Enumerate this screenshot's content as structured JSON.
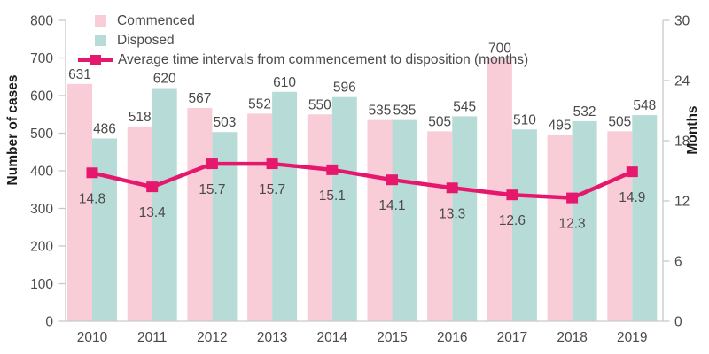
{
  "chart_data": {
    "type": "combo-bar-line",
    "title": "",
    "categories": [
      "2010",
      "2011",
      "2012",
      "2013",
      "2014",
      "2015",
      "2016",
      "2017",
      "2018",
      "2019"
    ],
    "series": [
      {
        "name": "Commenced",
        "type": "bar",
        "axis": "left",
        "color": "#f9cdd8",
        "values": [
          631,
          518,
          567,
          552,
          550,
          535,
          505,
          700,
          495,
          505
        ]
      },
      {
        "name": "Disposed",
        "type": "bar",
        "axis": "left",
        "color": "#b7dcd8",
        "values": [
          486,
          620,
          503,
          610,
          596,
          535,
          545,
          510,
          532,
          548
        ]
      },
      {
        "name": "Average time intervals from commencement to disposition (months)",
        "type": "line",
        "axis": "right",
        "color": "#e6186e",
        "marker": "square",
        "values": [
          14.8,
          13.4,
          15.7,
          15.7,
          15.1,
          14.1,
          13.3,
          12.6,
          12.3,
          14.9
        ]
      }
    ],
    "left_axis": {
      "label": "Number of cases",
      "min": 0,
      "max": 800,
      "ticks": [
        0,
        100,
        200,
        300,
        400,
        500,
        600,
        700,
        800
      ]
    },
    "right_axis": {
      "label": "Months",
      "min": 0,
      "max": 30,
      "ticks": [
        0,
        6,
        12,
        18,
        24,
        30
      ]
    },
    "grid": false,
    "legend_position": "top-left",
    "background": "#ffffff"
  },
  "colors": {
    "commenced_bar": "#f9cdd8",
    "disposed_bar": "#b7dcd8",
    "trend_line": "#e6186e",
    "text": "#4a4a4a",
    "axis_title_text": "#1c1c1c",
    "spine": "#c9c9c9",
    "background": "#ffffff"
  }
}
